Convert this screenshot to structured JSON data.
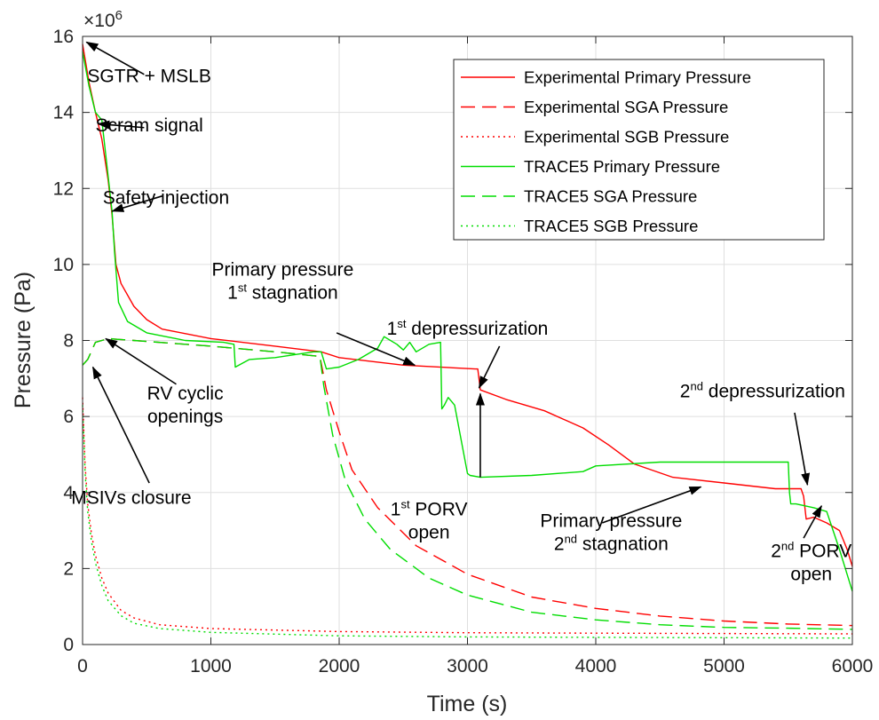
{
  "chart_data": {
    "type": "line",
    "xlabel": "Time (s)",
    "ylabel": "Pressure (Pa)",
    "y_exponent": "×10^6",
    "y_exponent_base": "×10",
    "y_exponent_power": "6",
    "xlim": [
      0,
      6000
    ],
    "ylim": [
      0,
      16000000
    ],
    "xticks": [
      0,
      1000,
      2000,
      3000,
      4000,
      5000,
      6000
    ],
    "xtick_labels": [
      "0",
      "1000",
      "2000",
      "3000",
      "4000",
      "5000",
      "6000"
    ],
    "yticks": [
      0,
      2000000,
      4000000,
      6000000,
      8000000,
      10000000,
      12000000,
      14000000,
      16000000
    ],
    "ytick_labels": [
      "0",
      "2",
      "4",
      "6",
      "8",
      "10",
      "12",
      "14",
      "16"
    ],
    "grid": true,
    "legend_position": "top-right",
    "series": [
      {
        "name": "Experimental Primary Pressure",
        "color": "#ff0000",
        "dash": "solid",
        "x": [
          0,
          50,
          100,
          150,
          200,
          230,
          260,
          300,
          400,
          500,
          620,
          1000,
          1500,
          1860,
          2000,
          2500,
          3060,
          3080,
          3100,
          3300,
          3600,
          3900,
          4100,
          4300,
          4600,
          5000,
          5400,
          5600,
          5620,
          5640,
          5700,
          5800,
          5900,
          5960,
          6000
        ],
        "y": [
          15800000,
          14800000,
          14000000,
          13300000,
          12200000,
          11300000,
          10000000,
          9500000,
          8900000,
          8550000,
          8300000,
          8050000,
          7850000,
          7700000,
          7550000,
          7350000,
          7250000,
          7250000,
          6700000,
          6450000,
          6150000,
          5700000,
          5250000,
          4750000,
          4400000,
          4250000,
          4100000,
          4100000,
          3900000,
          3300000,
          3350000,
          3200000,
          3000000,
          2500000,
          2050000
        ]
      },
      {
        "name": "Experimental SGA Pressure",
        "color": "#ff0000",
        "dash": "dashed",
        "x": [
          0,
          40,
          100,
          200,
          400,
          1000,
          1500,
          1850,
          1900,
          2000,
          2100,
          2300,
          2600,
          3000,
          3500,
          4000,
          4500,
          5000,
          5500,
          6000
        ],
        "y": [
          7350000,
          7500000,
          7950000,
          8050000,
          8000000,
          7850000,
          7700000,
          7580000,
          6700000,
          5600000,
          4600000,
          3600000,
          2600000,
          1850000,
          1250000,
          950000,
          750000,
          620000,
          540000,
          500000
        ]
      },
      {
        "name": "Experimental SGB Pressure",
        "color": "#ff0000",
        "dash": "dotted",
        "x": [
          0,
          20,
          40,
          70,
          100,
          150,
          200,
          300,
          400,
          600,
          1000,
          2000,
          3000,
          4000,
          5000,
          6000
        ],
        "y": [
          6500000,
          4700000,
          3700000,
          2900000,
          2350000,
          1750000,
          1350000,
          900000,
          700000,
          520000,
          420000,
          340000,
          310000,
          300000,
          290000,
          280000
        ]
      },
      {
        "name": "TRACE5 Primary Pressure",
        "color": "#00dd00",
        "dash": "solid",
        "x": [
          0,
          50,
          100,
          150,
          200,
          230,
          250,
          280,
          350,
          500,
          800,
          1100,
          1180,
          1190,
          1300,
          1500,
          1800,
          1860,
          1900,
          2000,
          2150,
          2300,
          2350,
          2450,
          2500,
          2550,
          2600,
          2700,
          2790,
          2800,
          2820,
          2850,
          2900,
          3000,
          3020,
          3100,
          3500,
          3900,
          4000,
          4500,
          5000,
          5500,
          5510,
          5520,
          5560,
          5700,
          5800,
          5850,
          5900,
          6000
        ],
        "y": [
          15600000,
          14700000,
          14000000,
          13800000,
          12300000,
          11400000,
          10300000,
          9000000,
          8500000,
          8200000,
          8000000,
          7950000,
          7900000,
          7300000,
          7500000,
          7550000,
          7700000,
          7700000,
          7250000,
          7300000,
          7500000,
          7800000,
          8100000,
          7900000,
          7750000,
          7950000,
          7700000,
          7900000,
          7950000,
          6200000,
          6300000,
          6500000,
          6300000,
          4500000,
          4450000,
          4400000,
          4450000,
          4550000,
          4700000,
          4800000,
          4800000,
          4800000,
          4000000,
          3700000,
          3700000,
          3600000,
          3500000,
          3000000,
          2500000,
          1400000
        ]
      },
      {
        "name": "TRACE5 SGA Pressure",
        "color": "#00dd00",
        "dash": "dashed",
        "x": [
          0,
          40,
          100,
          200,
          400,
          1000,
          1500,
          1850,
          1880,
          1950,
          2050,
          2200,
          2400,
          2700,
          3000,
          3500,
          4000,
          4500,
          5000,
          5500,
          6000
        ],
        "y": [
          7350000,
          7500000,
          7950000,
          8050000,
          8000000,
          7850000,
          7700000,
          7580000,
          6800000,
          5500000,
          4300000,
          3300000,
          2500000,
          1750000,
          1300000,
          850000,
          650000,
          520000,
          450000,
          430000,
          400000
        ]
      },
      {
        "name": "TRACE5 SGB Pressure",
        "color": "#00dd00",
        "dash": "dotted",
        "x": [
          0,
          20,
          40,
          70,
          100,
          150,
          200,
          300,
          400,
          600,
          1000,
          2000,
          3000,
          4000,
          5000,
          6000
        ],
        "y": [
          6300000,
          4500000,
          3500000,
          2700000,
          2150000,
          1550000,
          1150000,
          760000,
          560000,
          420000,
          320000,
          230000,
          200000,
          190000,
          180000,
          170000
        ]
      }
    ],
    "annotations": [
      {
        "lines": [
          {
            "text": "SGTR + MSLB"
          }
        ],
        "text_pos": [
          520,
          14800000
        ],
        "arrow_from": [
          480,
          15000000
        ],
        "arrow_to": [
          30,
          15850000
        ]
      },
      {
        "lines": [
          {
            "text": "Scram signal"
          }
        ],
        "text_pos": [
          520,
          13500000
        ],
        "arrow_from": [
          480,
          13600000
        ],
        "arrow_to": [
          120,
          13700000
        ]
      },
      {
        "lines": [
          {
            "text": "Safety injection"
          }
        ],
        "text_pos": [
          650,
          11600000
        ],
        "arrow_from": [
          620,
          11800000
        ],
        "arrow_to": [
          230,
          11400000
        ]
      },
      {
        "lines": [
          {
            "text": "Primary pressure"
          },
          {
            "pre": "1",
            "sup": "st",
            "post": " stagnation"
          }
        ],
        "text_pos": [
          1560,
          9700000
        ],
        "arrow_from": [
          1980,
          8200000
        ],
        "arrow_to": [
          2590,
          7350000
        ]
      },
      {
        "lines": [
          {
            "pre": "1",
            "sup": "st",
            "post": " depressurization"
          }
        ],
        "text_pos": [
          3000,
          8150000
        ],
        "arrow_from": [
          3250,
          7850000
        ],
        "arrow_to": [
          3090,
          6750000
        ]
      },
      {
        "lines": [
          {
            "text": "RV cyclic"
          },
          {
            "text": "openings"
          }
        ],
        "text_pos": [
          800,
          6450000
        ],
        "arrow_from": [
          730,
          6850000
        ],
        "arrow_to": [
          180,
          8050000
        ]
      },
      {
        "lines": [
          {
            "text": "MSIVs closure"
          }
        ],
        "text_pos": [
          380,
          3700000
        ],
        "arrow_from": [
          520,
          4250000
        ],
        "arrow_to": [
          80,
          7300000
        ]
      },
      {
        "lines": [
          {
            "pre": "1",
            "sup": "st",
            "post": " PORV"
          },
          {
            "text": "open"
          }
        ],
        "text_pos": [
          2700,
          3400000
        ],
        "arrow_from": [
          3100,
          4400000
        ],
        "arrow_to": [
          3100,
          6600000
        ]
      },
      {
        "lines": [
          {
            "pre": "2",
            "sup": "nd",
            "post": " depressurization"
          }
        ],
        "text_pos": [
          5300,
          6500000
        ],
        "arrow_from": [
          5550,
          6100000
        ],
        "arrow_to": [
          5650,
          4200000
        ]
      },
      {
        "lines": [
          {
            "text": "Primary pressure"
          },
          {
            "pre": "2",
            "sup": "nd",
            "post": " stagnation"
          }
        ],
        "text_pos": [
          4120,
          3100000
        ],
        "arrow_from": [
          4050,
          3200000
        ],
        "arrow_to": [
          4820,
          4150000
        ]
      },
      {
        "lines": [
          {
            "pre": "2",
            "sup": "nd",
            "post": " PORV"
          },
          {
            "text": "open"
          }
        ],
        "text_pos": [
          5680,
          2300000
        ],
        "arrow_from": [
          5620,
          2800000
        ],
        "arrow_to": [
          5760,
          3650000
        ]
      }
    ]
  }
}
